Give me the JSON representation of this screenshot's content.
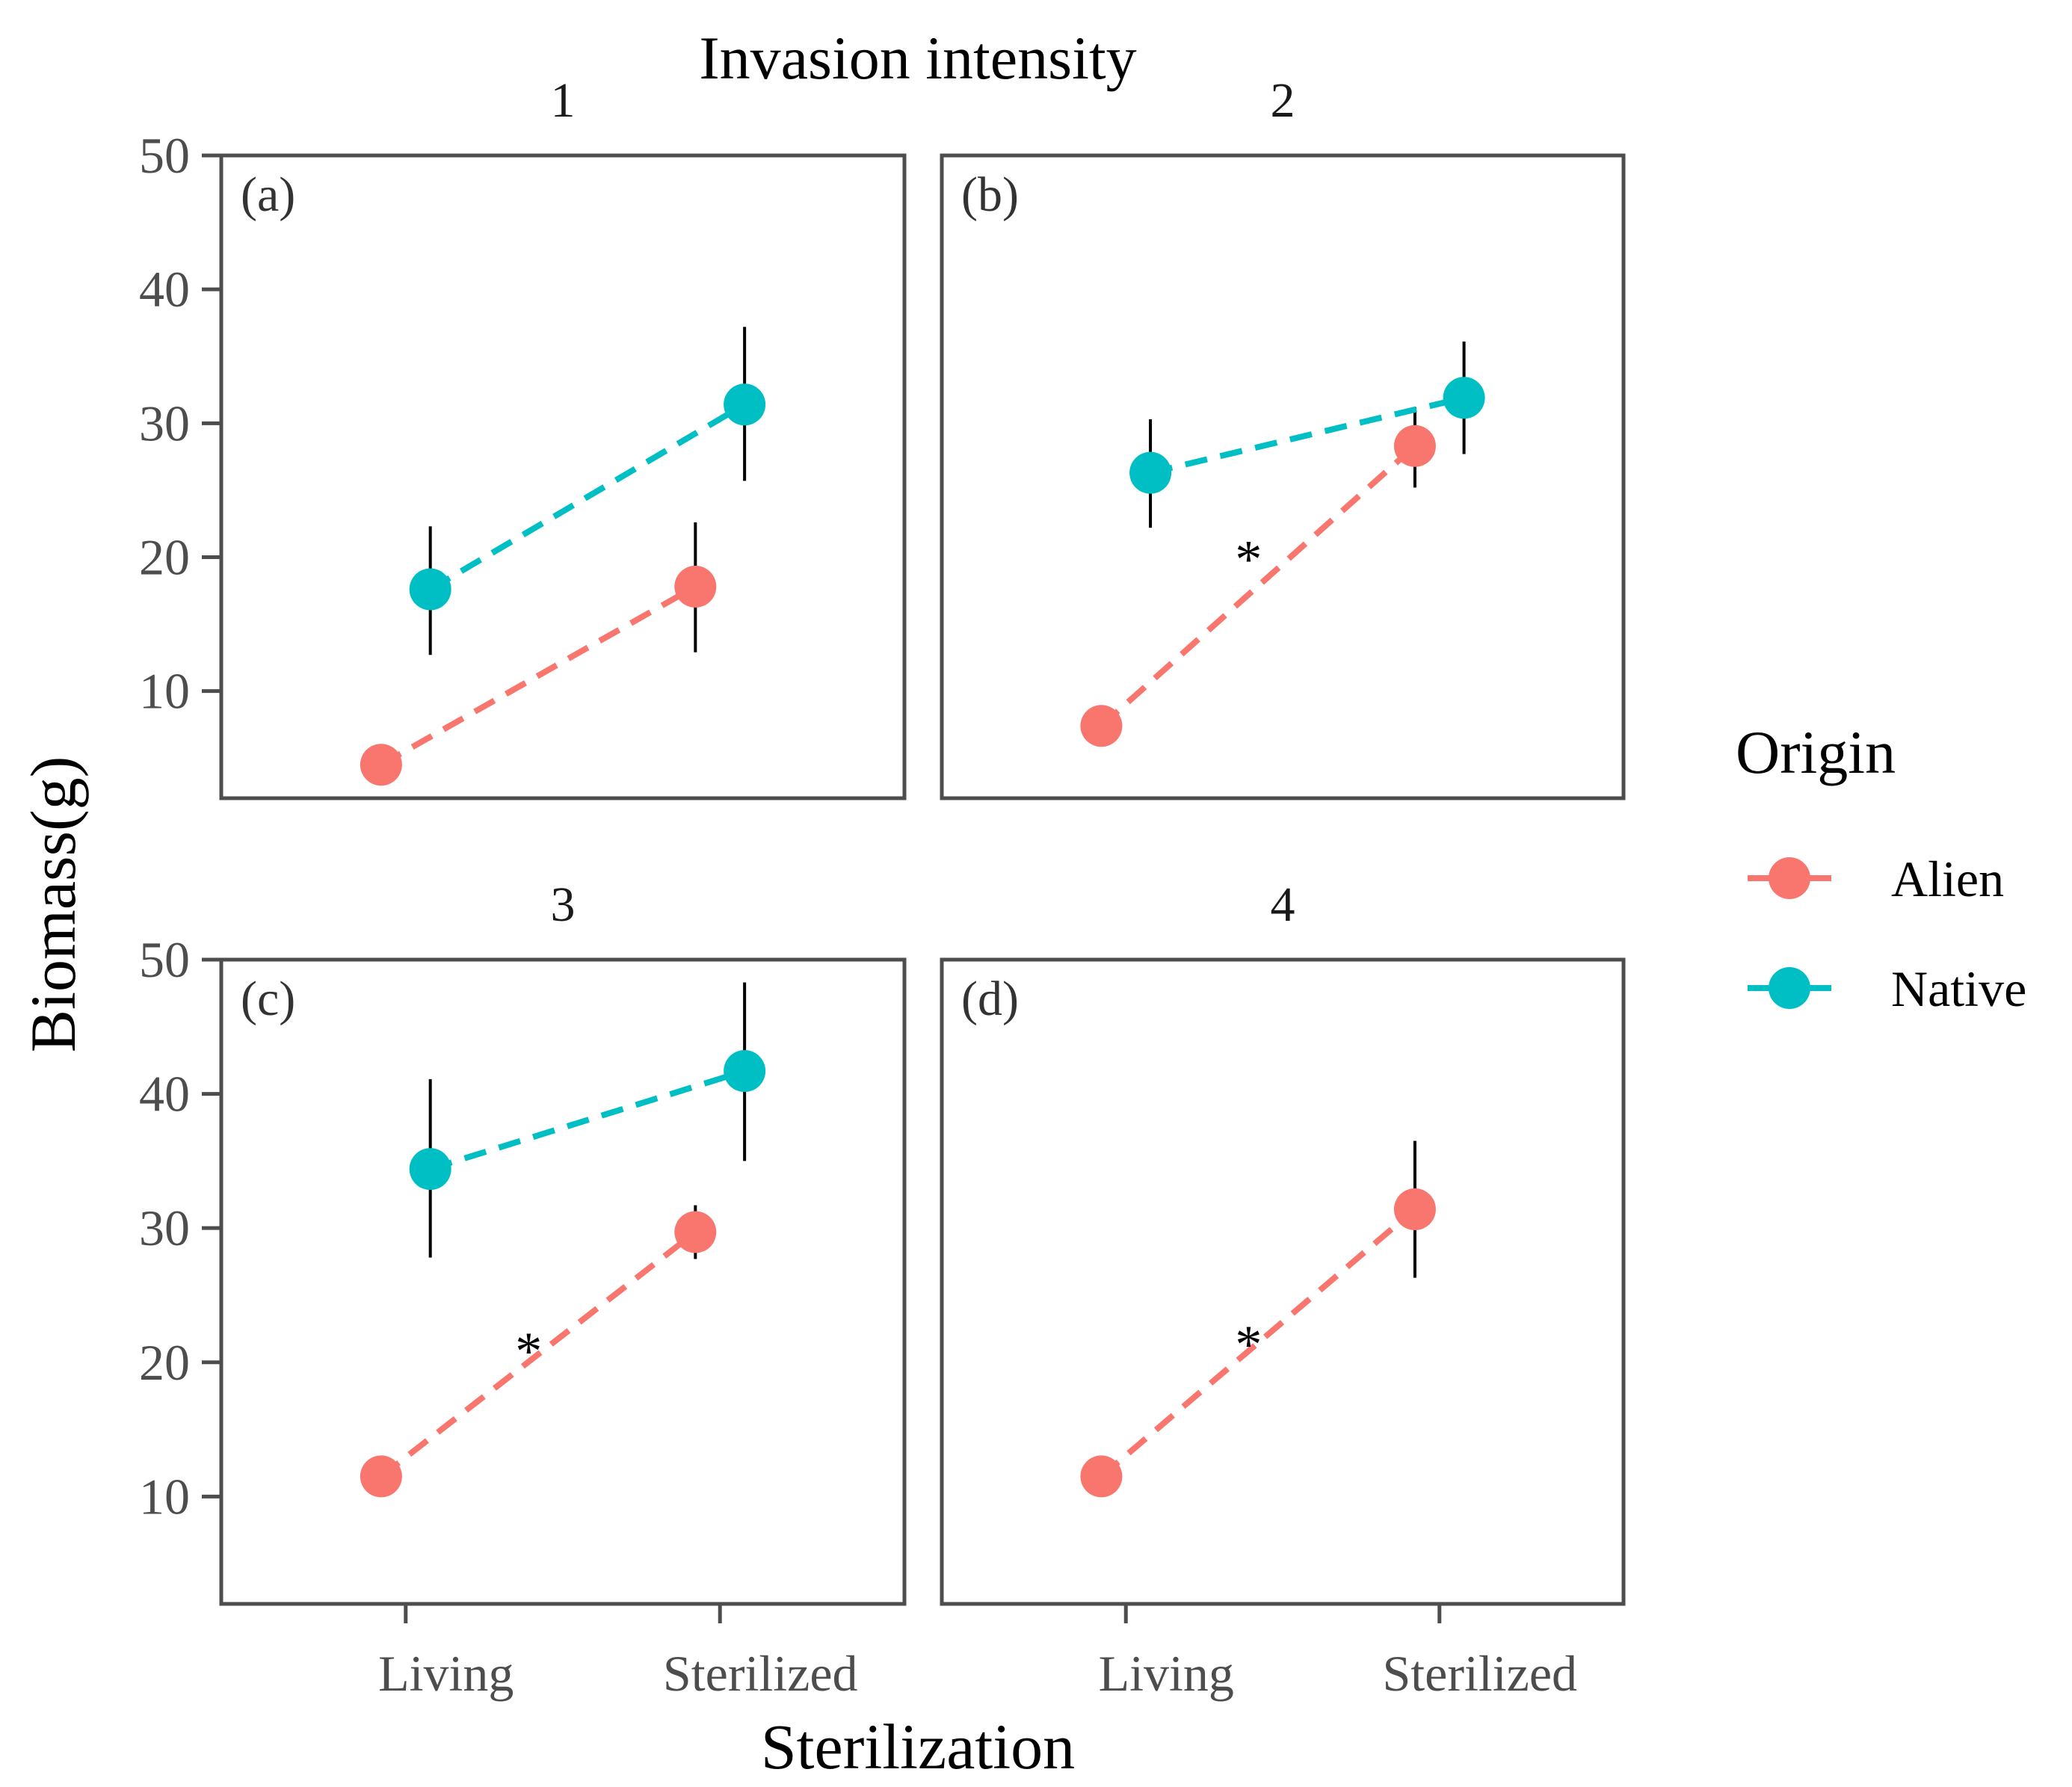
{
  "figure": {
    "top_title": "Invasion intensity",
    "ylabel": "Biomass(g)",
    "xlabel": "Sterilization"
  },
  "legend": {
    "title": "Origin",
    "placement": "right",
    "items": [
      {
        "label": "Alien",
        "color": "#F8766D"
      },
      {
        "label": "Native",
        "color": "#00BFC4"
      }
    ]
  },
  "chart_data": {
    "type": "scatter",
    "categories": [
      "Living",
      "Sterilized"
    ],
    "yticks": [
      "10",
      "20",
      "30",
      "40",
      "50"
    ],
    "ylim": [
      2,
      50
    ],
    "colors": {
      "Alien": "#F8766D",
      "Native": "#00BFC4"
    },
    "panels": [
      {
        "strip": "1",
        "tag": "(a)",
        "series": [
          {
            "name": "Alien",
            "values": [
              4.5,
              17.8
            ],
            "lower": [
              null,
              12.9
            ],
            "upper": [
              null,
              22.6
            ]
          },
          {
            "name": "Native",
            "values": [
              17.6,
              31.4
            ],
            "lower": [
              12.7,
              25.7
            ],
            "upper": [
              22.3,
              37.2
            ]
          }
        ],
        "annotation": null
      },
      {
        "strip": "2",
        "tag": "(b)",
        "series": [
          {
            "name": "Alien",
            "values": [
              7.4,
              28.3
            ],
            "lower": [
              null,
              25.2
            ],
            "upper": [
              null,
              31.2
            ]
          },
          {
            "name": "Native",
            "values": [
              26.3,
              31.9
            ],
            "lower": [
              22.2,
              27.7
            ],
            "upper": [
              30.3,
              36.1
            ]
          }
        ],
        "annotation": {
          "text": "*",
          "x": 0.45,
          "y": 20.5
        }
      },
      {
        "strip": "3",
        "tag": "(c)",
        "series": [
          {
            "name": "Alien",
            "values": [
              11.5,
              29.7
            ],
            "lower": [
              10.0,
              27.7
            ],
            "upper": [
              12.8,
              31.7
            ]
          },
          {
            "name": "Native",
            "values": [
              34.4,
              41.7
            ],
            "lower": [
              27.8,
              35.0
            ],
            "upper": [
              41.1,
              48.3
            ]
          }
        ],
        "annotation": {
          "text": "*",
          "x": 0.45,
          "y": 21.5
        }
      },
      {
        "strip": "4",
        "tag": "(d)",
        "series": [
          {
            "name": "Alien",
            "values": [
              11.5,
              31.4
            ],
            "lower": [
              null,
              26.3
            ],
            "upper": [
              null,
              36.5
            ]
          }
        ],
        "annotation": {
          "text": "*",
          "x": 0.45,
          "y": 22.0
        }
      }
    ]
  }
}
